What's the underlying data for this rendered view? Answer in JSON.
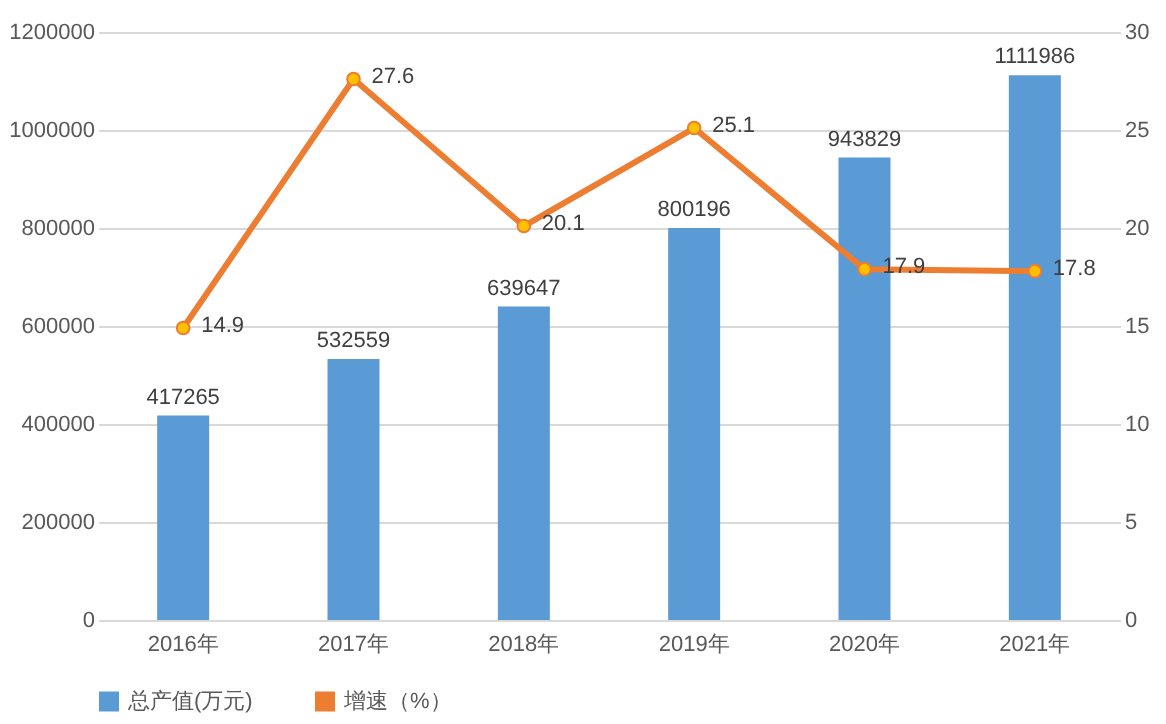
{
  "chart_data": {
    "type": "bar",
    "categories": [
      "2016年",
      "2017年",
      "2018年",
      "2019年",
      "2020年",
      "2021年"
    ],
    "series": [
      {
        "name": "总产值(万元)",
        "color": "#5b9bd5",
        "values": [
          417265,
          532559,
          639647,
          800196,
          943829,
          1111986
        ]
      },
      {
        "name": "增速（%）",
        "type": "line",
        "axis": "y2",
        "color": "#ed7d31",
        "values": [
          14.9,
          27.6,
          20.1,
          25.1,
          17.9,
          17.8
        ]
      }
    ],
    "ylim": [
      0,
      1200000
    ],
    "yticks": [
      0,
      200000,
      400000,
      600000,
      800000,
      1000000,
      1200000
    ],
    "y2lim": [
      0,
      30
    ],
    "y2ticks": [
      0,
      5,
      10,
      15,
      20,
      25,
      30
    ],
    "grid": "y",
    "legend": "bottom",
    "marker": "circle",
    "data_labels": true
  }
}
